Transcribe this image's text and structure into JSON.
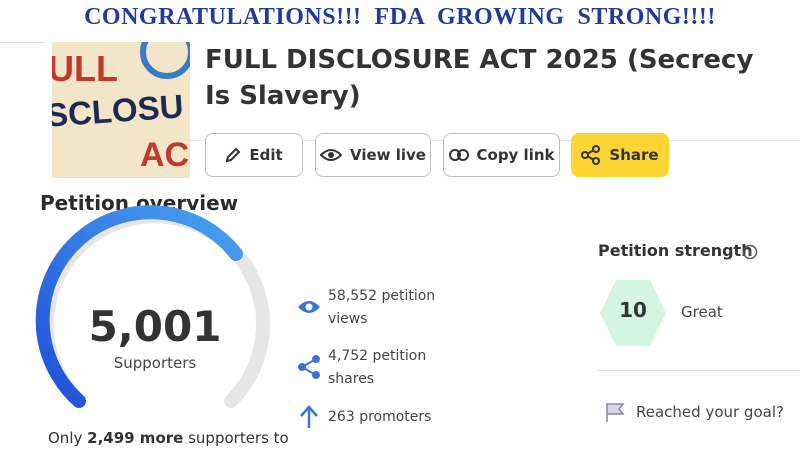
{
  "banner": "CONGRATULATIONS!!!  FDA  GROWING  STRONG!!!!",
  "thumbnail": {
    "lines": [
      "ULL",
      "SCLOSU",
      "AC"
    ]
  },
  "petition": {
    "title": "FULL DISCLOSURE ACT 2025 (Secrecy Is Slavery)"
  },
  "actions": [
    "Edit",
    "View live",
    "Copy link",
    "Share"
  ],
  "overview": {
    "heading": "Petition overview",
    "supporters": {
      "count": "5,001",
      "label": "Supporters"
    },
    "goal_note": {
      "prefix": "Only",
      "highlight": "2,499 more",
      "suffix": "supporters to"
    },
    "stats": [
      {
        "value": "58,552",
        "label": "petition views"
      },
      {
        "value": "4,752",
        "label": "petition shares"
      },
      {
        "value": "263",
        "label": "promoters"
      }
    ]
  },
  "strength": {
    "heading": "Petition strength",
    "score": "10",
    "rating": "Great",
    "goal_prompt": "Reached your goal?"
  }
}
